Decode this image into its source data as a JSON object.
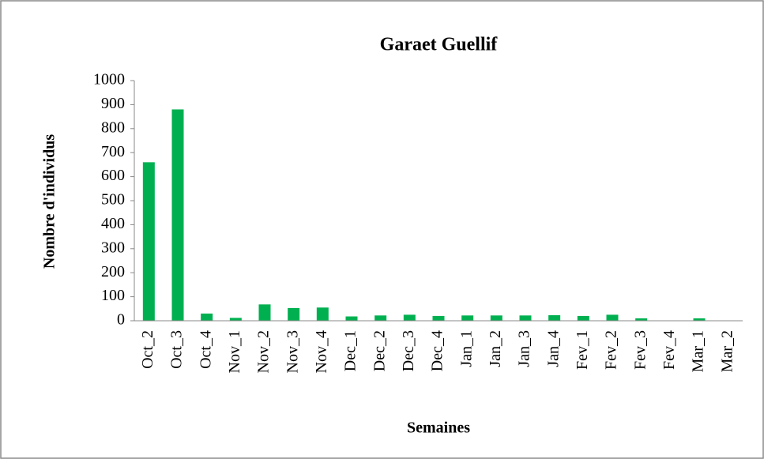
{
  "chart_data": {
    "type": "bar",
    "title": "Garaet Guellif",
    "x_label": "Semaines",
    "y_label": "Nombre d'individus",
    "categories": [
      "Oct_2",
      "Oct_3",
      "Oct_4",
      "Nov_1",
      "Nov_2",
      "Nov_3",
      "Nov_4",
      "Dec_1",
      "Dec_2",
      "Dec_3",
      "Dec_4",
      "Jan_1",
      "Jan_2",
      "Jan_3",
      "Jan_4",
      "Fev_1",
      "Fev_2",
      "Fev_3",
      "Fev_4",
      "Mar_1",
      "Mar_2"
    ],
    "values": [
      660,
      880,
      30,
      12,
      68,
      53,
      55,
      18,
      22,
      25,
      20,
      22,
      22,
      22,
      23,
      20,
      25,
      10,
      0,
      10,
      0
    ],
    "color": "#00b050",
    "ylim": [
      0,
      1000
    ],
    "yticks": [
      0,
      100,
      200,
      300,
      400,
      500,
      600,
      700,
      800,
      900,
      1000
    ],
    "grid": false
  }
}
